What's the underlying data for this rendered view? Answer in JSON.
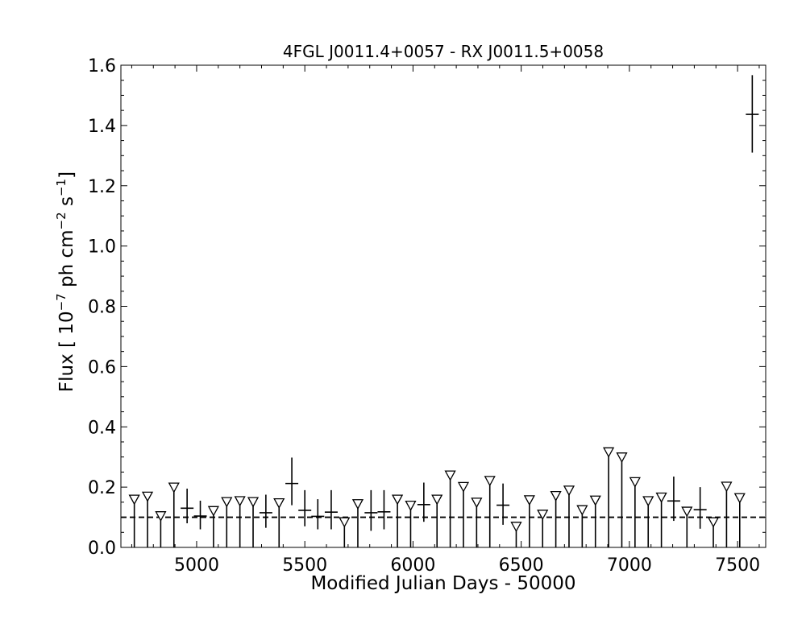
{
  "chart_data": {
    "type": "scatter",
    "title": "4FGL J0011.4+0057 - RX J0011.5+0058",
    "xlabel": "Modified Julian Days - 50000",
    "ylabel_main": "Flux [ 10",
    "ylabel_exp1": "−7",
    "ylabel_mid": " ph cm",
    "ylabel_exp2": "−2",
    "ylabel_mid2": " s",
    "ylabel_exp3": "−1",
    "ylabel_end": "]",
    "xlim": [
      4650,
      7630
    ],
    "ylim": [
      0.0,
      1.6
    ],
    "xticks_major": [
      5000,
      5500,
      6000,
      6500,
      7000,
      7500
    ],
    "xtick_labels": [
      "5000",
      "5500",
      "6000",
      "6500",
      "7000",
      "7500"
    ],
    "xticks_minor_step": 100,
    "yticks_major": [
      0.0,
      0.2,
      0.4,
      0.6,
      0.8,
      1.0,
      1.2,
      1.4,
      1.6
    ],
    "ytick_labels": [
      "0.0",
      "0.2",
      "0.4",
      "0.6",
      "0.8",
      "1.0",
      "1.2",
      "1.4",
      "1.6"
    ],
    "yticks_minor_step": 0.05,
    "mean_flux": 0.1,
    "grid": false,
    "detections": [
      {
        "x": 4956,
        "y": 0.13,
        "ylo": 0.08,
        "yhi": 0.195
      },
      {
        "x": 5017,
        "y": 0.104,
        "ylo": 0.06,
        "yhi": 0.155
      },
      {
        "x": 5320,
        "y": 0.115,
        "ylo": 0.065,
        "yhi": 0.175
      },
      {
        "x": 5440,
        "y": 0.212,
        "ylo": 0.14,
        "yhi": 0.298
      },
      {
        "x": 5500,
        "y": 0.123,
        "ylo": 0.07,
        "yhi": 0.19
      },
      {
        "x": 5560,
        "y": 0.103,
        "ylo": 0.06,
        "yhi": 0.16
      },
      {
        "x": 5622,
        "y": 0.117,
        "ylo": 0.06,
        "yhi": 0.19
      },
      {
        "x": 5806,
        "y": 0.115,
        "ylo": 0.055,
        "yhi": 0.19
      },
      {
        "x": 5866,
        "y": 0.118,
        "ylo": 0.06,
        "yhi": 0.19
      },
      {
        "x": 6050,
        "y": 0.142,
        "ylo": 0.085,
        "yhi": 0.215
      },
      {
        "x": 6416,
        "y": 0.14,
        "ylo": 0.075,
        "yhi": 0.212
      },
      {
        "x": 7205,
        "y": 0.154,
        "ylo": 0.088,
        "yhi": 0.235
      },
      {
        "x": 7327,
        "y": 0.125,
        "ylo": 0.062,
        "yhi": 0.2
      },
      {
        "x": 7568,
        "y": 1.437,
        "ylo": 1.31,
        "yhi": 1.567
      }
    ],
    "upper_limits": [
      {
        "x": 4712,
        "y": 0.16
      },
      {
        "x": 4773,
        "y": 0.17
      },
      {
        "x": 4834,
        "y": 0.105
      },
      {
        "x": 4895,
        "y": 0.2
      },
      {
        "x": 5078,
        "y": 0.122
      },
      {
        "x": 5139,
        "y": 0.152
      },
      {
        "x": 5200,
        "y": 0.155
      },
      {
        "x": 5261,
        "y": 0.152
      },
      {
        "x": 5381,
        "y": 0.148
      },
      {
        "x": 5683,
        "y": 0.085
      },
      {
        "x": 5745,
        "y": 0.145
      },
      {
        "x": 5928,
        "y": 0.16
      },
      {
        "x": 5989,
        "y": 0.14
      },
      {
        "x": 6111,
        "y": 0.16
      },
      {
        "x": 6172,
        "y": 0.24
      },
      {
        "x": 6233,
        "y": 0.202
      },
      {
        "x": 6294,
        "y": 0.15
      },
      {
        "x": 6355,
        "y": 0.222
      },
      {
        "x": 6477,
        "y": 0.07
      },
      {
        "x": 6538,
        "y": 0.158
      },
      {
        "x": 6599,
        "y": 0.11
      },
      {
        "x": 6660,
        "y": 0.172
      },
      {
        "x": 6721,
        "y": 0.19
      },
      {
        "x": 6782,
        "y": 0.125
      },
      {
        "x": 6843,
        "y": 0.157
      },
      {
        "x": 6904,
        "y": 0.317
      },
      {
        "x": 6965,
        "y": 0.3
      },
      {
        "x": 7026,
        "y": 0.218
      },
      {
        "x": 7087,
        "y": 0.155
      },
      {
        "x": 7148,
        "y": 0.167
      },
      {
        "x": 7266,
        "y": 0.12
      },
      {
        "x": 7388,
        "y": 0.085
      },
      {
        "x": 7449,
        "y": 0.203
      },
      {
        "x": 7510,
        "y": 0.165
      }
    ],
    "colors": {
      "axes": "#000000",
      "marker_fill": "#ffffff",
      "marker_edge": "#000000",
      "errorbar": "#000000",
      "mean_line": "#000000"
    }
  }
}
